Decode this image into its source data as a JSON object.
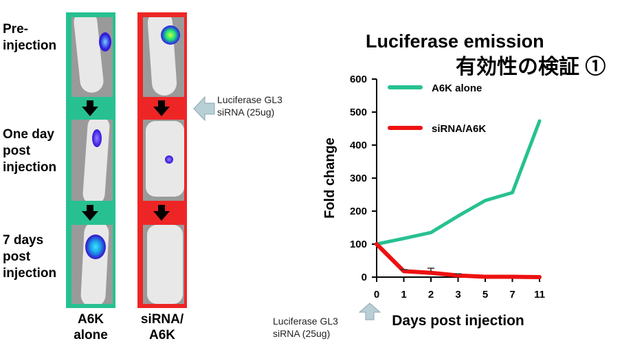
{
  "row_labels": [
    "Pre-\ninjection",
    "One day\npost\ninjection",
    "7 days\npost\ninjection"
  ],
  "columns": [
    {
      "label": "A6K\nalone",
      "color": "#27c191"
    },
    {
      "label": "siRNA/\nA6K",
      "color": "#ee2525"
    }
  ],
  "side_note": "Luciferase GL3\nsiRNA (25ug)",
  "bottom_note": "Luciferase GL3\nsiRNA (25ug)",
  "title_line1": "Luciferase emission",
  "title_line2": "有効性の検証 ①",
  "chart_data": {
    "type": "line",
    "categories": [
      "0",
      "1",
      "2",
      "3",
      "5",
      "7",
      "11"
    ],
    "xlabel": "Days post injection",
    "ylabel": "Fold change",
    "ylim": [
      0,
      600
    ],
    "yticks": [
      "0",
      "100",
      "200",
      "300",
      "400",
      "500",
      "600"
    ],
    "legend_position": "top-left",
    "series": [
      {
        "name": "A6K alone",
        "color": "#27c191",
        "values": [
          100,
          117,
          135,
          185,
          232,
          256,
          473
        ]
      },
      {
        "name": "siRNA/A6K",
        "color": "#ee1111",
        "values": [
          100,
          18,
          13,
          5,
          1,
          1,
          0
        ],
        "error": [
          0,
          5,
          14,
          5,
          0,
          0,
          0
        ]
      }
    ]
  }
}
